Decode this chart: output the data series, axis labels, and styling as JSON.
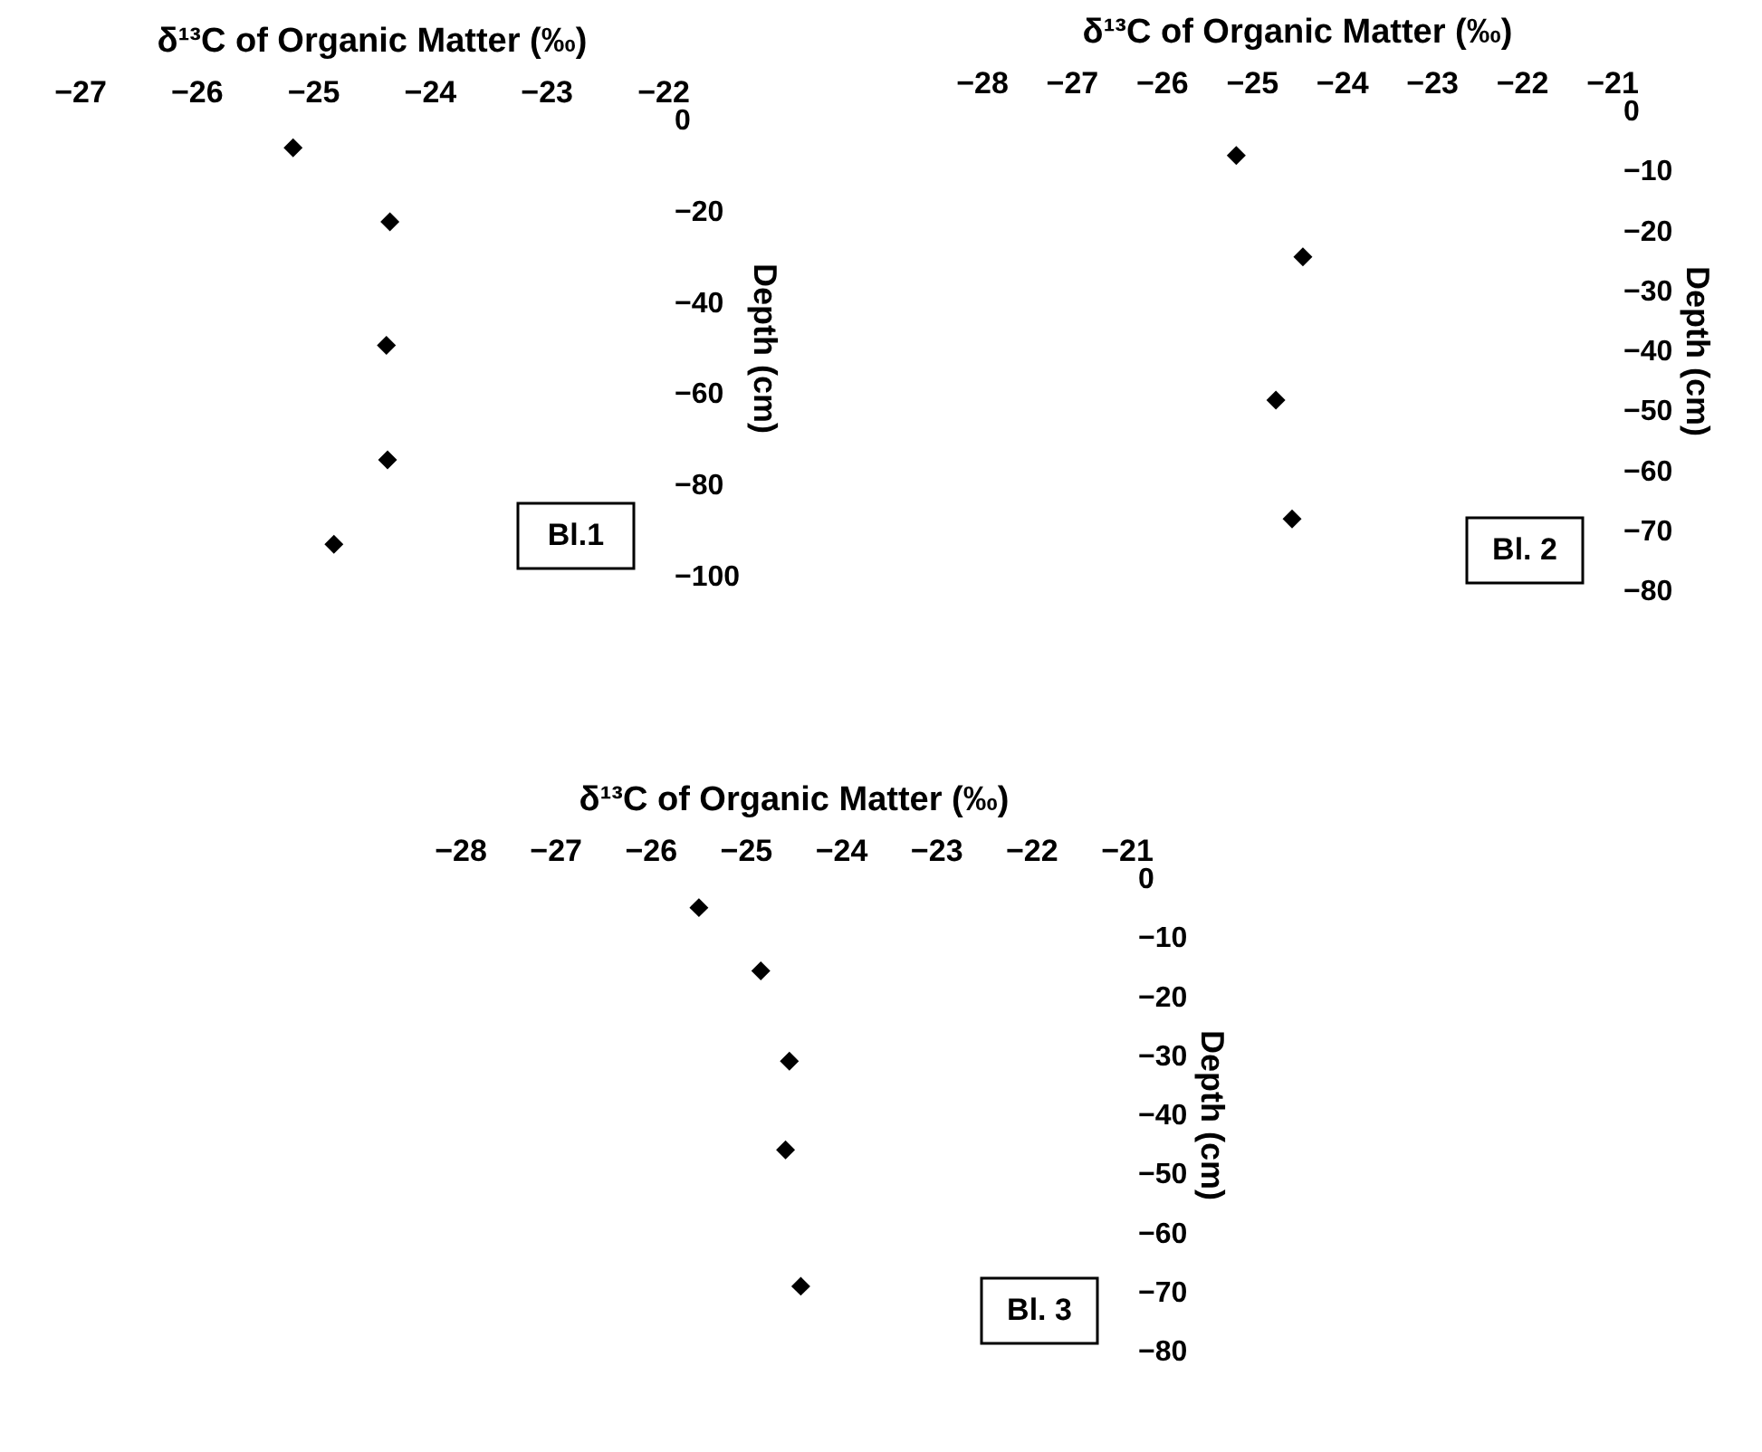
{
  "chart_data": [
    {
      "type": "scatter",
      "xlabel": "δ¹³C of Organic Matter (‰)",
      "ylabel": "Depth (cm)",
      "marker": "diamond",
      "series": [
        {
          "color": "#000000",
          "x": [
            -25.17,
            -24.34,
            -24.37,
            -24.36,
            -24.82
          ],
          "values": [
            -6.2,
            -22.4,
            -49.5,
            -74.6,
            -93.1
          ]
        }
      ],
      "xlim": [
        -27,
        -22
      ],
      "xticks": [
        -27,
        -26,
        -25,
        -24,
        -23,
        -22
      ],
      "ylim": [
        -100,
        0
      ],
      "yticks": [
        -100,
        -80,
        -60,
        -40,
        -20,
        0
      ],
      "annotations": [
        "Bl.1"
      ]
    },
    {
      "type": "scatter",
      "xlabel": "δ¹³C of Organic Matter (‰)",
      "ylabel": "Depth (cm)",
      "marker": "diamond",
      "series": [
        {
          "color": "#000000",
          "x": [
            -25.17,
            -24.43,
            -24.73,
            -24.55
          ],
          "values": [
            -7.5,
            -24.4,
            -48.3,
            -68.1
          ]
        }
      ],
      "xlim": [
        -28,
        -21
      ],
      "xticks": [
        -28,
        -27,
        -26,
        -25,
        -24,
        -23,
        -22,
        -21
      ],
      "ylim": [
        -80,
        0
      ],
      "yticks": [
        -80,
        -70,
        -60,
        -50,
        -40,
        -30,
        -20,
        -10,
        0
      ],
      "annotations": [
        "Bl. 2"
      ]
    },
    {
      "type": "scatter",
      "xlabel": "δ¹³C of Organic Matter (‰)",
      "ylabel": "Depth (cm)",
      "marker": "diamond",
      "series": [
        {
          "color": "#000000",
          "x": [
            -25.49,
            -24.84,
            -24.54,
            -24.58,
            -24.42
          ],
          "values": [
            -5.0,
            -15.7,
            -31.0,
            -46.0,
            -69.1
          ]
        }
      ],
      "xlim": [
        -28,
        -21
      ],
      "xticks": [
        -28,
        -27,
        -26,
        -25,
        -24,
        -23,
        -22,
        -21
      ],
      "ylim": [
        -80,
        0
      ],
      "yticks": [
        -80,
        -70,
        -60,
        -50,
        -40,
        -30,
        -20,
        -10,
        0
      ],
      "annotations": [
        "Bl. 3"
      ]
    }
  ]
}
